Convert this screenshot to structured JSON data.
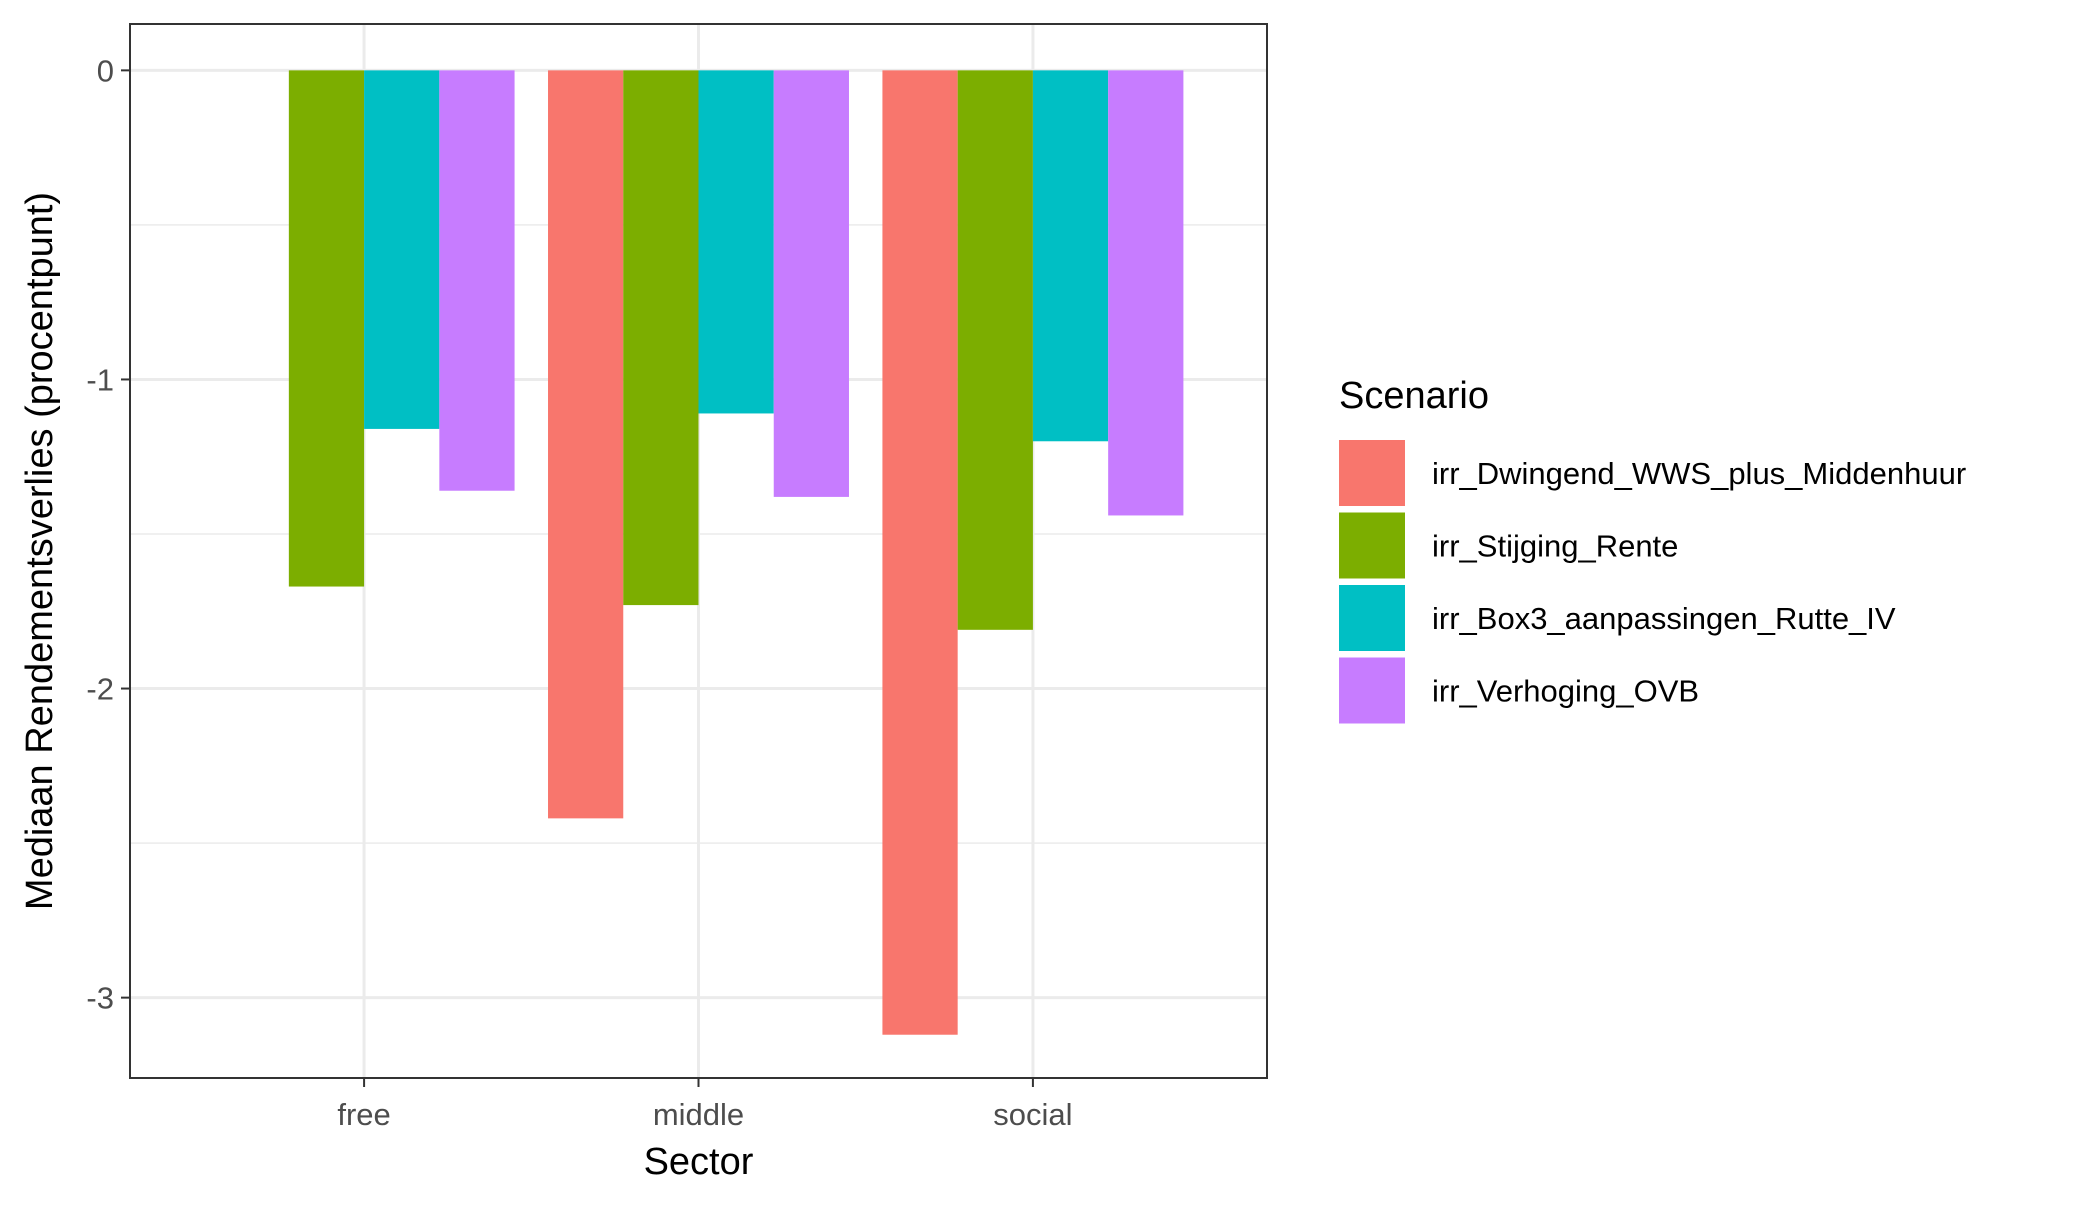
{
  "chart_data": {
    "type": "bar",
    "title": "",
    "xlabel": "Sector",
    "ylabel": "Mediaan Rendementsverlies (procentpunt)",
    "categories": [
      "free",
      "middle",
      "social"
    ],
    "series": [
      {
        "name": "irr_Dwingend_WWS_plus_Middenhuur",
        "color": "#F8766D",
        "values": [
          null,
          -2.42,
          -3.12
        ]
      },
      {
        "name": "irr_Stijging_Rente",
        "color": "#7CAE00",
        "values": [
          -1.67,
          -1.73,
          -1.81
        ]
      },
      {
        "name": "irr_Box3_aanpassingen_Rutte_IV",
        "color": "#00BFC4",
        "values": [
          -1.16,
          -1.11,
          -1.2
        ]
      },
      {
        "name": "irr_Verhoging_OVB",
        "color": "#C77CFF",
        "values": [
          -1.36,
          -1.38,
          -1.44
        ]
      }
    ],
    "ylim": [
      -3.26,
      0.15
    ],
    "yticks": [
      0,
      -1,
      -2,
      -3
    ],
    "ytick_labels": [
      "0",
      "-1",
      "-2",
      "-3"
    ],
    "grid": true,
    "legend": {
      "title": "Scenario",
      "position": "right"
    }
  }
}
